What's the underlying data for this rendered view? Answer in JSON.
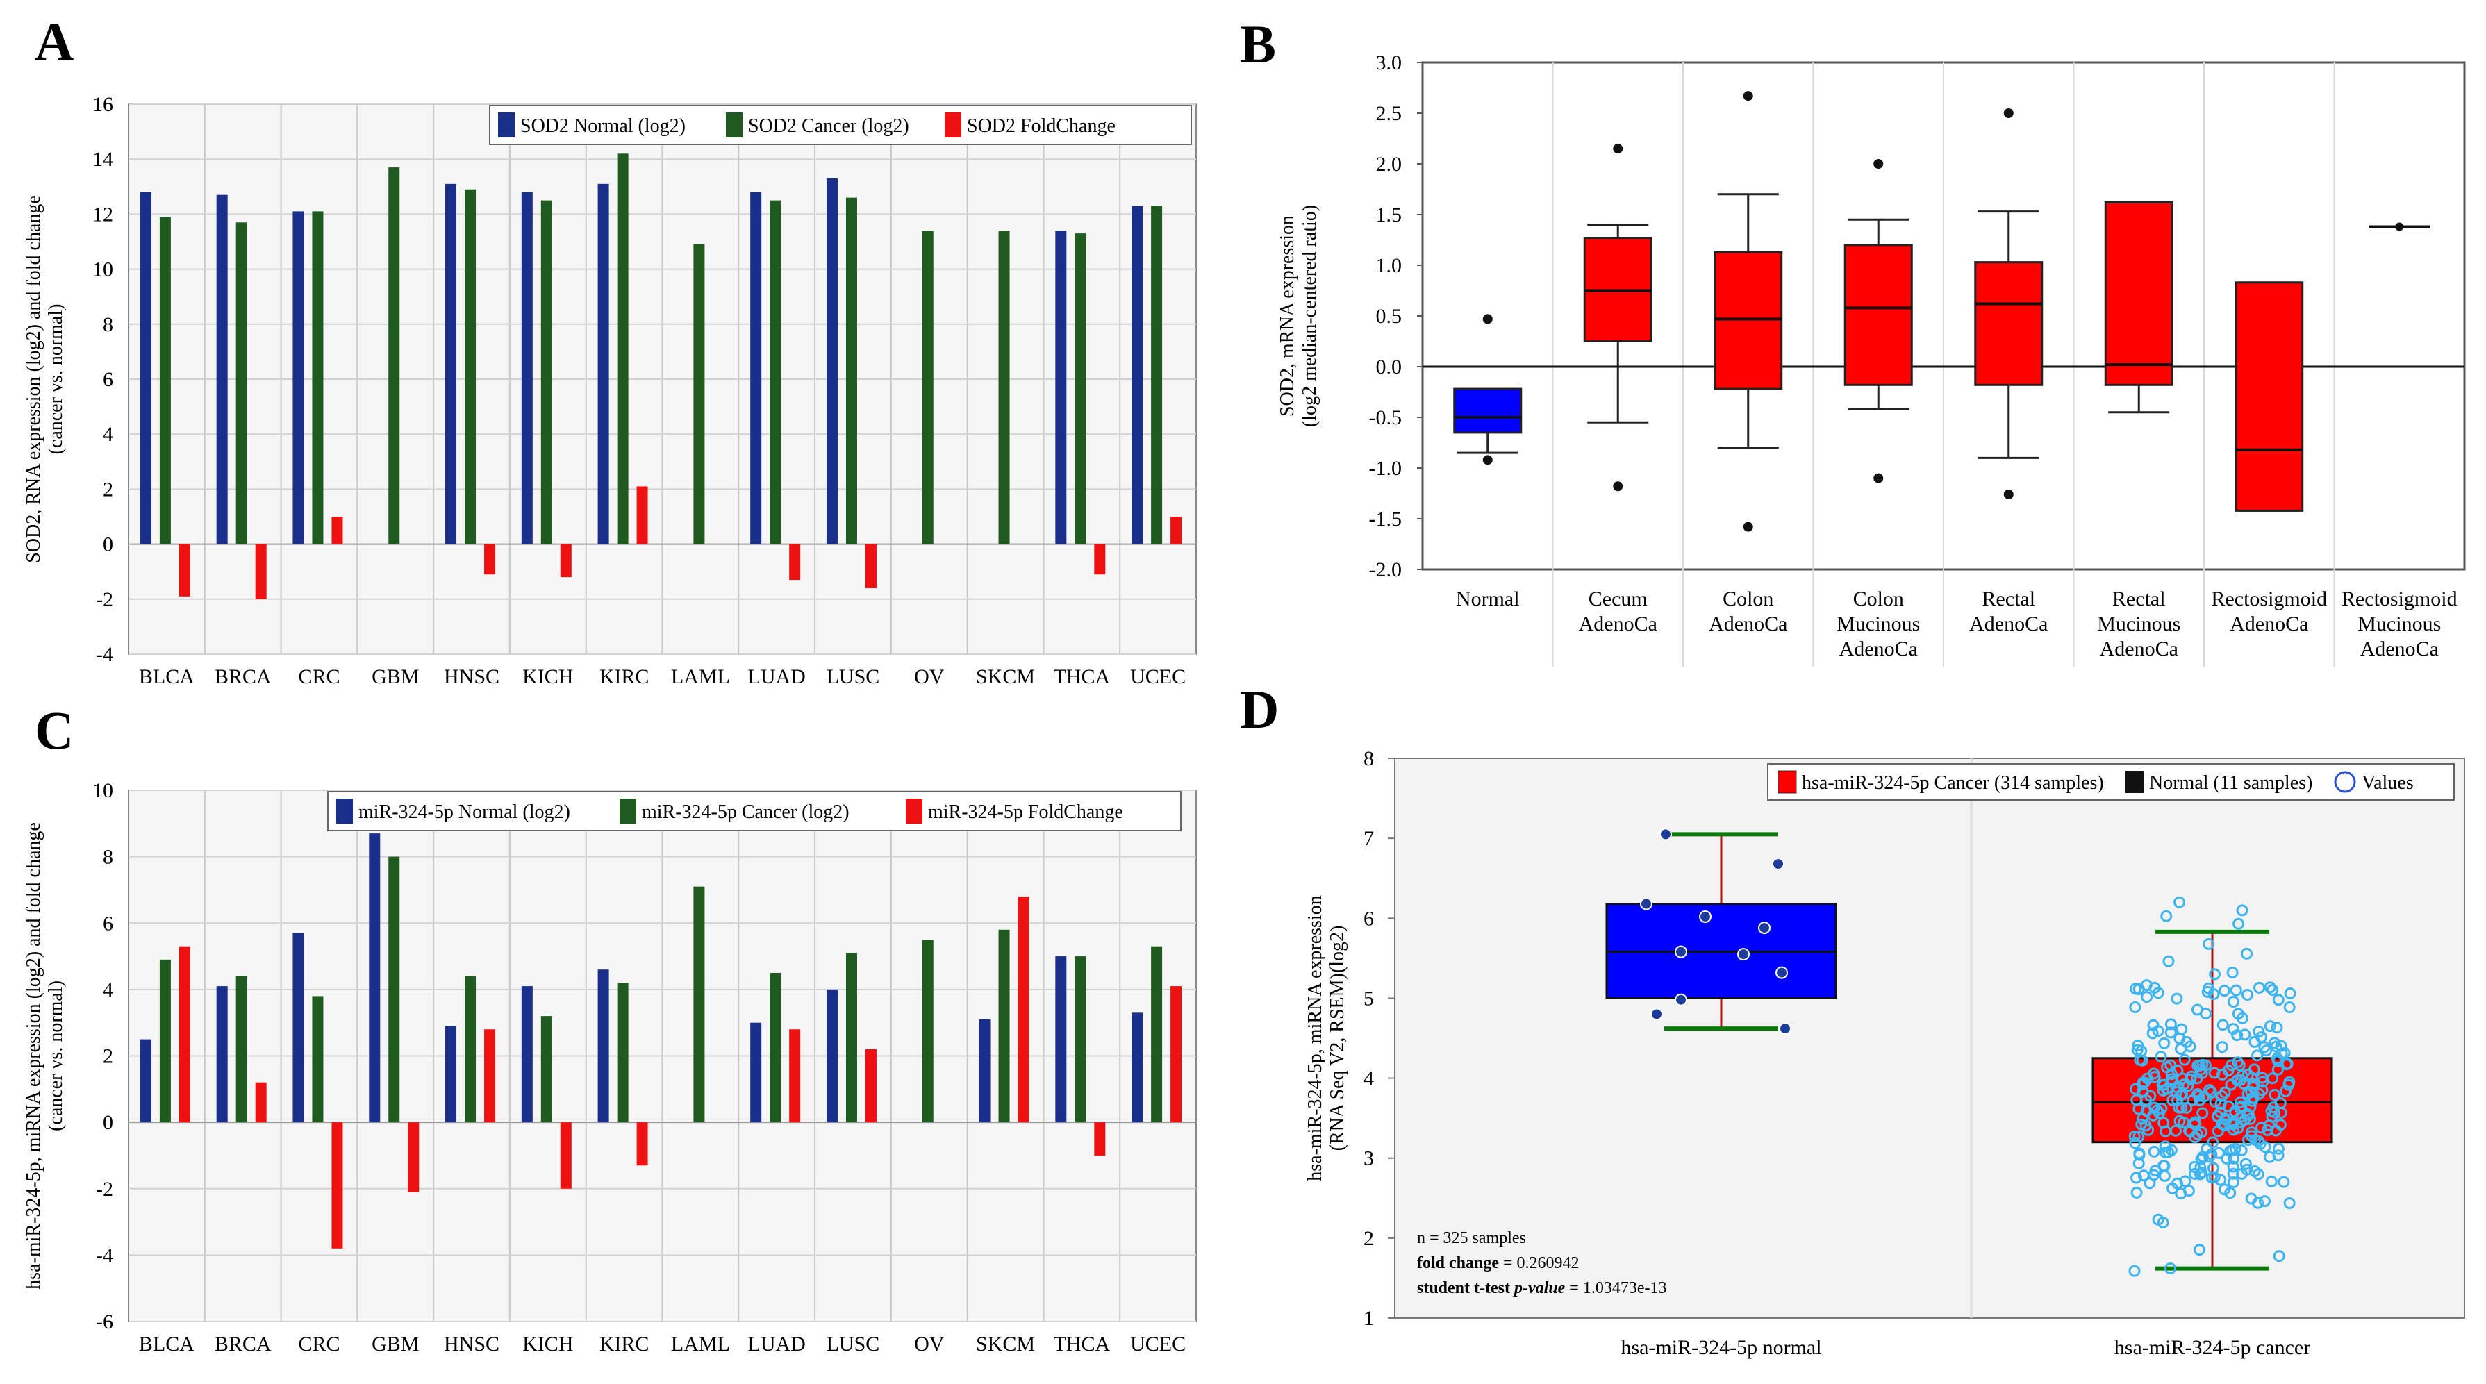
{
  "panels": {
    "A": "A",
    "B": "B",
    "C": "C",
    "D": "D"
  },
  "colors": {
    "normal": "#1a2f8a",
    "cancer": "#1f5a1f",
    "fold": "#ee1111",
    "box_red": "#ff0000",
    "box_blue": "#0000ff",
    "point_light_blue": "#3cb4f0"
  },
  "chart_data": [
    {
      "id": "A",
      "type": "bar",
      "ylabel": "SOD2, RNA expression (log2) and fold change",
      "ylabel2": "(cancer vs. normal)",
      "ylim": [
        -4,
        16
      ],
      "yticks": [
        -4,
        -2,
        0,
        2,
        4,
        6,
        8,
        10,
        12,
        14,
        16
      ],
      "categories": [
        "BLCA",
        "BRCA",
        "CRC",
        "GBM",
        "HNSC",
        "KICH",
        "KIRC",
        "LAML",
        "LUAD",
        "LUSC",
        "OV",
        "SKCM",
        "THCA",
        "UCEC"
      ],
      "legend": [
        "SOD2 Normal (log2)",
        "SOD2 Cancer (log2)",
        "SOD2 FoldChange"
      ],
      "series": [
        {
          "name": "SOD2 Normal (log2)",
          "values": [
            12.8,
            12.7,
            12.1,
            null,
            13.1,
            12.8,
            13.1,
            null,
            12.8,
            13.3,
            null,
            null,
            11.4,
            12.3
          ]
        },
        {
          "name": "SOD2 Cancer (log2)",
          "values": [
            11.9,
            11.7,
            12.1,
            13.7,
            12.9,
            12.5,
            14.2,
            10.9,
            12.5,
            12.6,
            11.4,
            11.4,
            11.3,
            12.3
          ]
        },
        {
          "name": "SOD2 FoldChange",
          "values": [
            -1.9,
            -2.0,
            1.0,
            null,
            -1.1,
            -1.2,
            2.1,
            null,
            -1.3,
            -1.6,
            null,
            null,
            -1.1,
            1.0
          ]
        }
      ]
    },
    {
      "id": "B",
      "type": "box",
      "ylabel": "SOD2, mRNA expression",
      "ylabel2": "(log2 median-centered ratio)",
      "ylim": [
        -2.0,
        3.0
      ],
      "yticks": [
        "-2.0",
        "-1.5",
        "-1.0",
        "-0.5",
        "0.0",
        "0.5",
        "1.0",
        "1.5",
        "2.0",
        "2.5",
        "3.0"
      ],
      "categories": [
        [
          "Normal"
        ],
        [
          "Cecum",
          "AdenoCa"
        ],
        [
          "Colon",
          "AdenoCa"
        ],
        [
          "Colon",
          "Mucinous",
          "AdenoCa"
        ],
        [
          "Rectal",
          "AdenoCa"
        ],
        [
          "Rectal",
          "Mucinous",
          "AdenoCa"
        ],
        [
          "Rectosigmoid",
          "AdenoCa"
        ],
        [
          "Rectosigmoid",
          "Mucinous",
          "AdenoCa"
        ]
      ],
      "boxes": [
        {
          "q1": -0.65,
          "median": -0.5,
          "q3": -0.22,
          "wlo": -0.85,
          "whi": -0.22,
          "outliers": [
            0.47,
            -0.92
          ],
          "color": "blue"
        },
        {
          "q1": 0.25,
          "median": 0.75,
          "q3": 1.27,
          "wlo": -0.55,
          "whi": 1.4,
          "outliers": [
            2.15,
            -1.18
          ],
          "color": "red"
        },
        {
          "q1": -0.22,
          "median": 0.47,
          "q3": 1.13,
          "wlo": -0.8,
          "whi": 1.7,
          "outliers": [
            2.67,
            -1.58
          ],
          "color": "red"
        },
        {
          "q1": -0.18,
          "median": 0.58,
          "q3": 1.2,
          "wlo": -0.42,
          "whi": 1.45,
          "outliers": [
            2.0,
            -1.1
          ],
          "color": "red"
        },
        {
          "q1": -0.18,
          "median": 0.62,
          "q3": 1.03,
          "wlo": -0.9,
          "whi": 1.53,
          "outliers": [
            2.5,
            -1.26
          ],
          "color": "red"
        },
        {
          "q1": -0.18,
          "median": 0.02,
          "q3": 1.62,
          "wlo": -0.45,
          "whi": 1.62,
          "outliers": [],
          "color": "red"
        },
        {
          "q1": -1.42,
          "median": -0.82,
          "q3": 0.83,
          "wlo": -1.42,
          "whi": 0.83,
          "outliers": [],
          "color": "red"
        },
        {
          "q1": 1.38,
          "median": 1.38,
          "q3": 1.38,
          "wlo": 1.38,
          "whi": 1.38,
          "outliers": [],
          "color": "line"
        }
      ]
    },
    {
      "id": "C",
      "type": "bar",
      "ylabel": "hsa-miR-324-5p, miRNA expression (log2) and fold change",
      "ylabel2": "(cancer vs. normal)",
      "ylim": [
        -6,
        10
      ],
      "yticks": [
        -6,
        -4,
        -2,
        0,
        2,
        4,
        6,
        8,
        10
      ],
      "categories": [
        "BLCA",
        "BRCA",
        "CRC",
        "GBM",
        "HNSC",
        "KICH",
        "KIRC",
        "LAML",
        "LUAD",
        "LUSC",
        "OV",
        "SKCM",
        "THCA",
        "UCEC"
      ],
      "legend": [
        "miR-324-5p Normal (log2)",
        "miR-324-5p Cancer (log2)",
        "miR-324-5p FoldChange"
      ],
      "series": [
        {
          "name": "miR-324-5p Normal (log2)",
          "values": [
            2.5,
            4.1,
            5.7,
            8.7,
            2.9,
            4.1,
            4.6,
            null,
            3.0,
            4.0,
            null,
            3.1,
            5.0,
            3.3
          ]
        },
        {
          "name": "miR-324-5p Cancer (log2)",
          "values": [
            4.9,
            4.4,
            3.8,
            8.0,
            4.4,
            3.2,
            4.2,
            7.1,
            4.5,
            5.1,
            5.5,
            5.8,
            5.0,
            5.3
          ]
        },
        {
          "name": "miR-324-5p FoldChange",
          "values": [
            5.3,
            1.2,
            -3.8,
            -2.1,
            2.8,
            -2.0,
            -1.3,
            null,
            2.8,
            2.2,
            null,
            6.8,
            -1.0,
            4.1
          ]
        }
      ]
    },
    {
      "id": "D",
      "type": "box",
      "ylabel": "hsa-miR-324-5p, miRNA expression",
      "ylabel2": "(RNA Seq V2, RSEM)(log2)",
      "ylim": [
        1,
        8
      ],
      "yticks": [
        1,
        2,
        3,
        4,
        5,
        6,
        7,
        8
      ],
      "categories": [
        "hsa-miR-324-5p normal",
        "hsa-miR-324-5p cancer"
      ],
      "legend": [
        "hsa-miR-324-5p Cancer (314 samples)",
        "Normal (11 samples)",
        "Values"
      ],
      "boxes": [
        {
          "q1": 5.0,
          "median": 5.58,
          "q3": 6.18,
          "wlo": 4.62,
          "whi": 7.05,
          "color": "blue",
          "points": [
            7.05,
            6.68,
            6.18,
            6.02,
            5.88,
            5.58,
            5.55,
            5.32,
            4.98,
            4.8,
            4.62
          ]
        },
        {
          "q1": 3.2,
          "median": 3.7,
          "q3": 4.25,
          "wlo": 1.62,
          "whi": 5.83,
          "color": "red"
        }
      ],
      "notes": {
        "n": "n = 325 samples",
        "fold_label": "fold change",
        "fold_value": " = 0.260942",
        "ttest_label_a": "student t-test ",
        "ttest_label_b": "p-value",
        "ttest_value": " = 1.03473e-13"
      }
    }
  ]
}
